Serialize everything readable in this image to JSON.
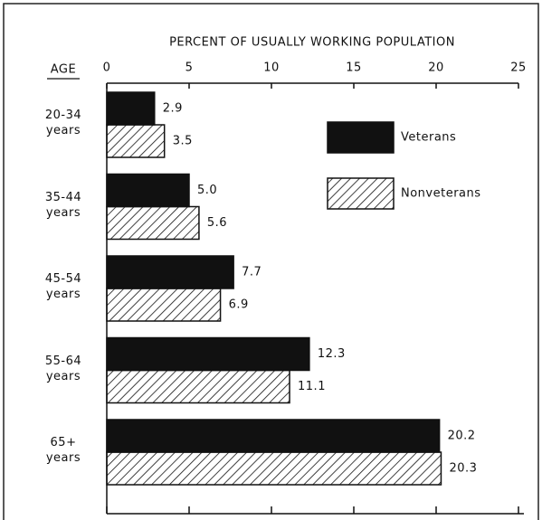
{
  "chart_data": {
    "type": "hbar",
    "title": "PERCENT OF USUALLY WORKING POPULATION",
    "category_label": "AGE",
    "categories": [
      "20-34 years",
      "35-44 years",
      "45-54 years",
      "55-64 years",
      "65+ years"
    ],
    "series": [
      {
        "name": "Veterans",
        "color": "#111111",
        "values": [
          2.9,
          5.0,
          7.7,
          12.3,
          20.2
        ],
        "value_labels": [
          "2.9",
          "5.0",
          "7.7",
          "12.3",
          "20.2"
        ]
      },
      {
        "name": "Nonveterans",
        "color": "#111111",
        "pattern": "hatch",
        "values": [
          3.5,
          5.6,
          6.9,
          11.1,
          20.3
        ],
        "value_labels": [
          "3.5",
          "5.6",
          "6.9",
          "11.1",
          "20.3"
        ]
      }
    ],
    "xlim": [
      0,
      25
    ],
    "xticks": [
      0,
      5,
      10,
      15,
      20,
      25
    ]
  }
}
